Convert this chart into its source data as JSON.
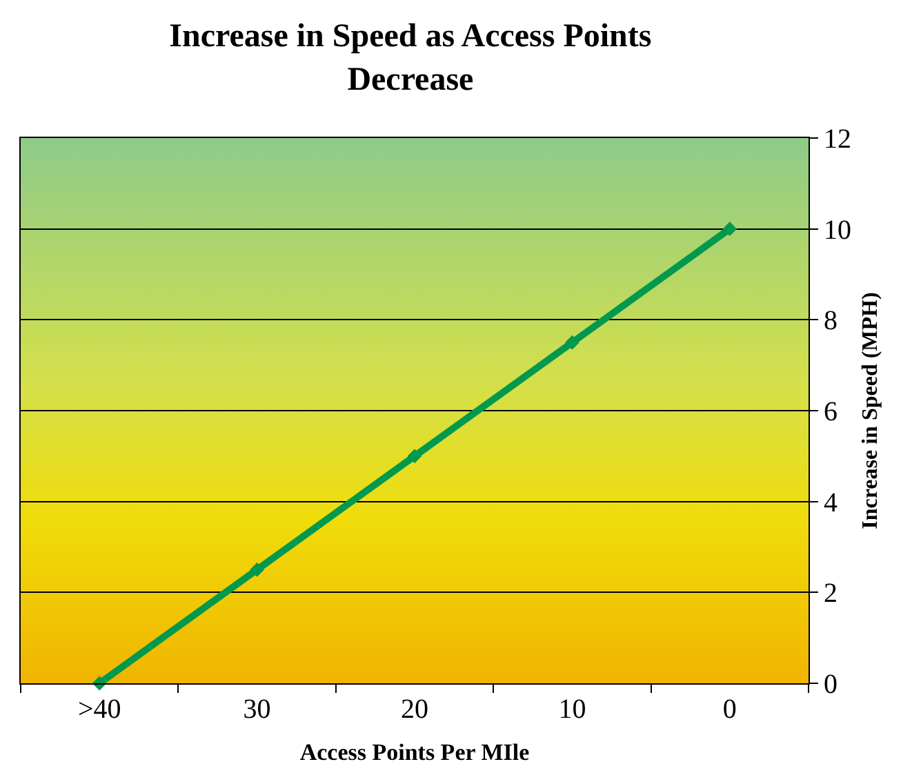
{
  "chart_data": {
    "type": "line",
    "title": "Increase in Speed as Access Points\nDecrease",
    "xlabel": "Access Points Per MIle",
    "ylabel": "Increase in Speed (MPH)",
    "categories": [
      ">40",
      "30",
      "20",
      "10",
      "0"
    ],
    "series": [
      {
        "color": "#00994d",
        "values": [
          0,
          2.5,
          5,
          7.5,
          10
        ]
      }
    ],
    "ylim": [
      0,
      12
    ],
    "yticks": [
      0,
      2,
      4,
      6,
      8,
      10,
      12
    ],
    "grid": "y",
    "marker": "diamond",
    "line_style": "solid",
    "legend": false
  }
}
